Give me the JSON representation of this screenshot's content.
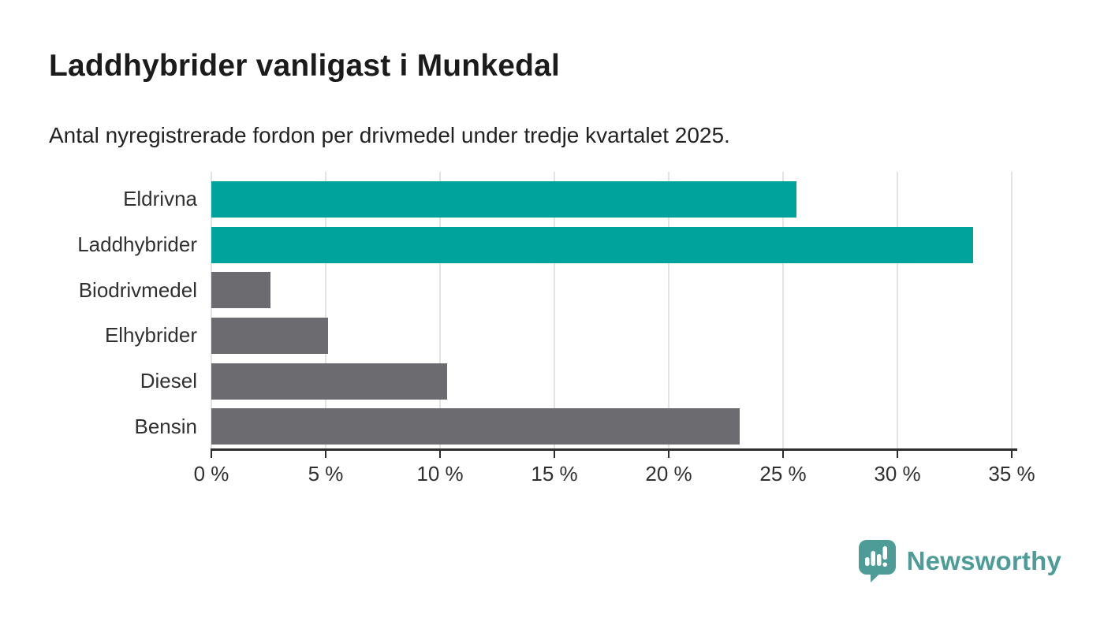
{
  "header": {
    "title": "Laddhybrider vanligast i Munkedal",
    "subtitle": "Antal nyregistrerade fordon per drivmedel under tredje kvartalet 2025."
  },
  "chart_data": {
    "type": "bar",
    "orientation": "horizontal",
    "title": "Laddhybrider vanligast i Munkedal",
    "subtitle": "Antal nyregistrerade fordon per drivmedel under tredje kvartalet 2025.",
    "categories": [
      "Eldrivna",
      "Laddhybrider",
      "Biodrivmedel",
      "Elhybrider",
      "Diesel",
      "Bensin"
    ],
    "values": [
      25.6,
      33.3,
      2.6,
      5.1,
      10.3,
      23.1
    ],
    "value_unit": "%",
    "bar_colors": [
      "#00a39c",
      "#00a39c",
      "#6c6c70",
      "#6c6c70",
      "#6c6c70",
      "#6c6c70"
    ],
    "xlabel": "",
    "ylabel": "",
    "xlim": [
      0,
      35
    ],
    "x_ticks": [
      0,
      5,
      10,
      15,
      20,
      25,
      30,
      35
    ],
    "x_tick_labels": [
      "0 %",
      "5 %",
      "10 %",
      "15 %",
      "20 %",
      "25 %",
      "30 %",
      "35 %"
    ],
    "grid": "vertical-only",
    "legend": "none"
  },
  "colors": {
    "accent_teal": "#00a39c",
    "bar_gray": "#6c6c70",
    "gridline": "#e3e3e3",
    "axis": "#2d2d2d",
    "title_text": "#1b1b1b",
    "label_text": "#303030",
    "logo_teal": "#4d9c97"
  },
  "branding": {
    "logo_text": "Newsworthy",
    "logo_icon": "newsworthy-bar-chart-bubble-icon"
  }
}
